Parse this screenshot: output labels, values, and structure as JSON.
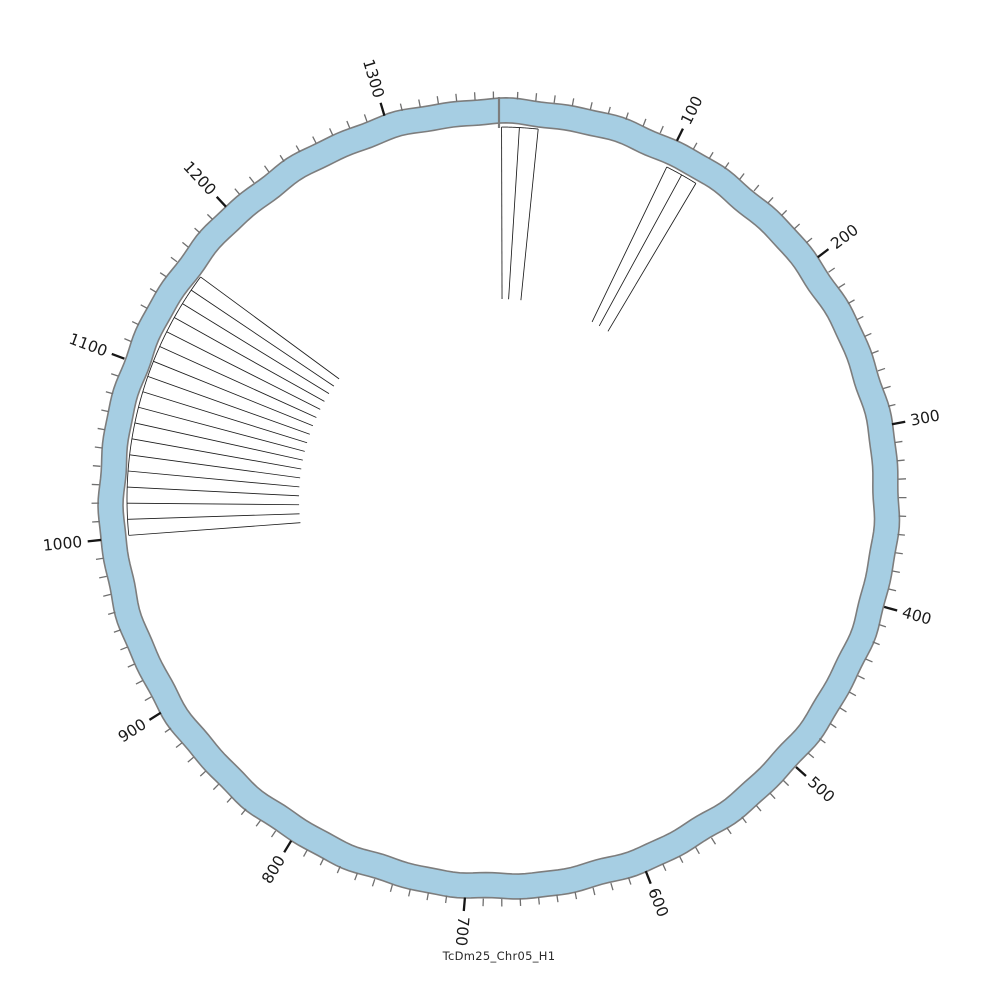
{
  "title": "TcDm25_Chr05_H1",
  "colors": {
    "background": "#ffffff",
    "ring_fill": "#a6cee3",
    "ring_border": "#7d7d7d",
    "tick_minor": "#6f6f6f",
    "tick_major": "#161616",
    "label_color": "#1a1a1a",
    "link_stroke": "#1c1c1c",
    "boundary_line": "#7d7d7d"
  },
  "chart_data": {
    "type": "circos",
    "title": "TcDm25_Chr05_H1",
    "sequence": {
      "name": "TcDm25_Chr05_H1",
      "total_units": 1363
    },
    "axis": {
      "minor_tick_interval": 10,
      "major_tick_interval": 100,
      "tick_labels": [
        100,
        200,
        300,
        400,
        500,
        600,
        700,
        800,
        900,
        1000,
        1100,
        1200,
        1300
      ],
      "start_angle_deg": 0,
      "direction": "clockwise",
      "grid": false
    },
    "link_groups": [
      {
        "name": "top-bundle",
        "base_start": 1.5,
        "base_end": 22.9,
        "lines": [
          {
            "base": 1.5,
            "tip": 3.3
          },
          {
            "base": 11.9,
            "tip": 10.4
          },
          {
            "base": 22.9,
            "tip": 23.8
          }
        ]
      },
      {
        "name": "upper-right-bundle",
        "base_start": 101.5,
        "base_end": 121.0,
        "lines": [
          {
            "base": 101.5,
            "tip": 105.0
          },
          {
            "base": 111.3,
            "tip": 113.9
          },
          {
            "base": 121.0,
            "tip": 125.0
          }
        ]
      },
      {
        "name": "left-fan",
        "base_start": 1001.0,
        "base_end": 1161.0,
        "lines": [
          {
            "base": 1001.0,
            "tip": 996.5
          },
          {
            "base": 1010.4,
            "tip": 1006.2
          },
          {
            "base": 1019.8,
            "tip": 1016.0
          },
          {
            "base": 1029.2,
            "tip": 1025.7
          },
          {
            "base": 1038.6,
            "tip": 1035.4
          },
          {
            "base": 1048.1,
            "tip": 1045.2
          },
          {
            "base": 1057.5,
            "tip": 1054.9
          },
          {
            "base": 1066.9,
            "tip": 1064.7
          },
          {
            "base": 1076.3,
            "tip": 1074.4
          },
          {
            "base": 1085.7,
            "tip": 1084.1
          },
          {
            "base": 1095.1,
            "tip": 1093.8
          },
          {
            "base": 1104.5,
            "tip": 1103.6
          },
          {
            "base": 1113.9,
            "tip": 1113.3
          },
          {
            "base": 1123.4,
            "tip": 1123.1
          },
          {
            "base": 1132.8,
            "tip": 1132.8
          },
          {
            "base": 1142.2,
            "tip": 1142.6
          },
          {
            "base": 1151.6,
            "tip": 1152.3
          },
          {
            "base": 1161.0,
            "tip": 1162.0
          }
        ]
      }
    ]
  }
}
